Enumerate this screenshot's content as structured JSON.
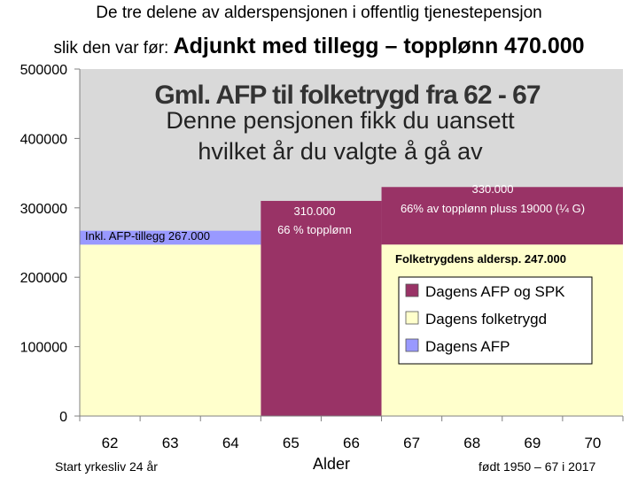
{
  "title_line1": "De tre delene av alderspensjonen i offentlig tjenestepensjon",
  "title_line2_prefix": "slik den var før:",
  "title_line2_main": "Adjunkt med tillegg – topplønn 470.000",
  "chart_data": {
    "type": "bar",
    "ylim": [
      0,
      500000
    ],
    "yticks": [
      "0",
      "100000",
      "200000",
      "300000",
      "400000",
      "500000"
    ],
    "categories": [
      "62",
      "63",
      "64",
      "65",
      "66",
      "67",
      "68",
      "69",
      "70"
    ],
    "series": [
      {
        "name": "Dagens AFP og SPK",
        "color": "#993366",
        "segments": [
          {
            "from": "65",
            "to": "66",
            "bottom": 0,
            "top": 310000
          },
          {
            "from": "67",
            "to": "70",
            "bottom": 247000,
            "top": 330000
          }
        ]
      },
      {
        "name": "Dagens folketrygd",
        "color": "#ffffcc",
        "segments": [
          {
            "from": "62",
            "to": "64",
            "bottom": 0,
            "top": 247000
          },
          {
            "from": "67",
            "to": "70",
            "bottom": 0,
            "top": 247000
          }
        ]
      },
      {
        "name": "Dagens AFP",
        "color": "#9999ff",
        "segments": [
          {
            "from": "62",
            "to": "64",
            "bottom": 247000,
            "top": 267000
          }
        ]
      }
    ],
    "overlay_title_garbled": "Gml. AFP til folketrygd fra 62 - 67",
    "overlay_title_line1": "Denne pensjonen fikk du uansett",
    "overlay_title_line2": "hvilket år du valgte å gå av",
    "label_afp_tillegg": "Inkl. AFP-tillegg 267.000",
    "label_310_value": "310.000",
    "label_310_desc": "66 % topplønn",
    "label_330_value": "330.000",
    "label_330_desc": "66% av topplønn pluss 19000 (¼ G)",
    "label_folketrygd": "Folketrygdens aldersp.   247.000",
    "xlabel": "Alder",
    "note_left": "Start yrkesliv 24 år",
    "note_right": "født 1950 – 67 i 2017",
    "background_color": "#d9d9d9"
  }
}
